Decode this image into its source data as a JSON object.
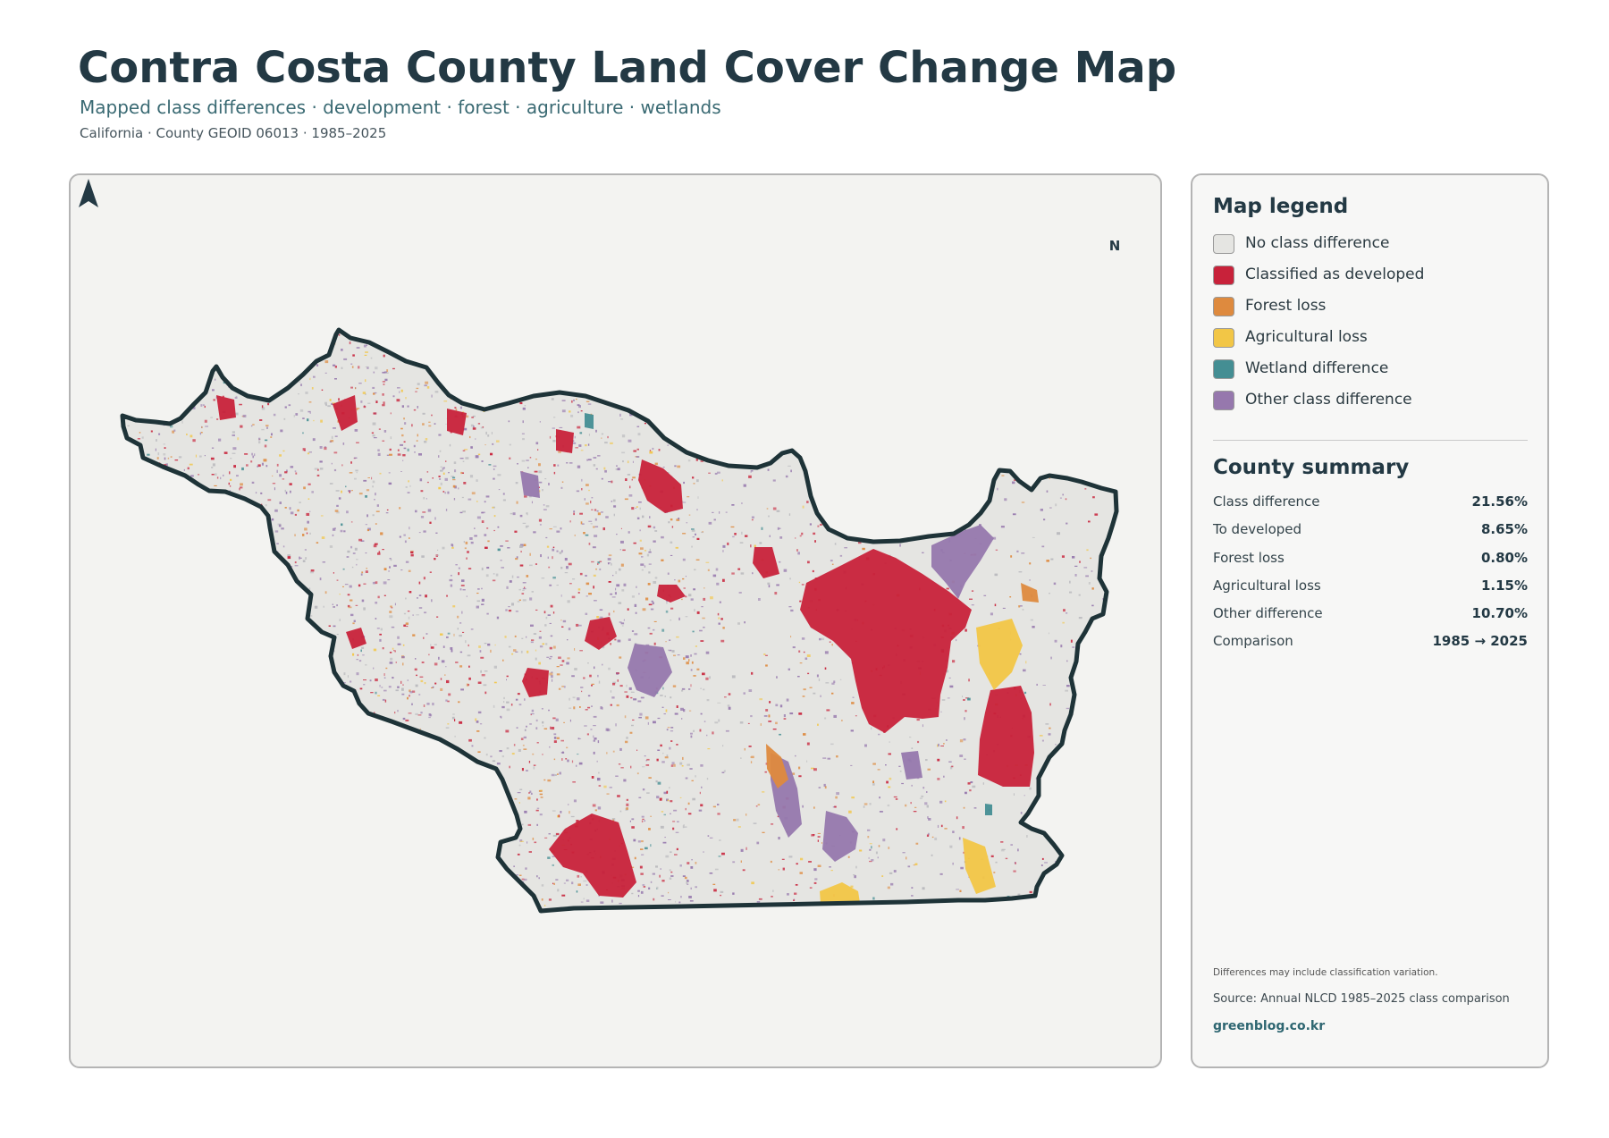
{
  "header": {
    "title": "Contra Costa County Land Cover Change Map",
    "subtitle": "Mapped class differences · development · forest · agriculture · wetlands",
    "meta": "California · County GEOID 06013 · 1985–2025"
  },
  "map": {
    "north_label": "N",
    "colors": {
      "no_change": "#e5e5e2",
      "developed": "#c8223a",
      "forest_loss": "#de8a3e",
      "agricultural_loss": "#f2c646",
      "wetland": "#448e93",
      "other": "#9678ad",
      "boundary": "#1e3338",
      "background": "#f3f3f1"
    }
  },
  "legend": {
    "title": "Map legend",
    "items": [
      {
        "label": "No class difference",
        "color": "#e5e5e2"
      },
      {
        "label": "Classified as developed",
        "color": "#c8223a"
      },
      {
        "label": "Forest loss",
        "color": "#de8a3e"
      },
      {
        "label": "Agricultural loss",
        "color": "#f2c646"
      },
      {
        "label": "Wetland difference",
        "color": "#448e93"
      },
      {
        "label": "Other class difference",
        "color": "#9678ad"
      }
    ]
  },
  "summary": {
    "title": "County summary",
    "rows": [
      {
        "label": "Class difference",
        "value": "21.56%"
      },
      {
        "label": "To developed",
        "value": "8.65%"
      },
      {
        "label": "Forest loss",
        "value": "0.80%"
      },
      {
        "label": "Agricultural loss",
        "value": "1.15%"
      },
      {
        "label": "Other difference",
        "value": "10.70%"
      },
      {
        "label": "Comparison",
        "value": "1985 → 2025"
      }
    ]
  },
  "footer": {
    "note": "Differences may include classification variation.",
    "source": "Source: Annual NLCD 1985–2025 class comparison",
    "brand": "greenblog.co.kr"
  }
}
